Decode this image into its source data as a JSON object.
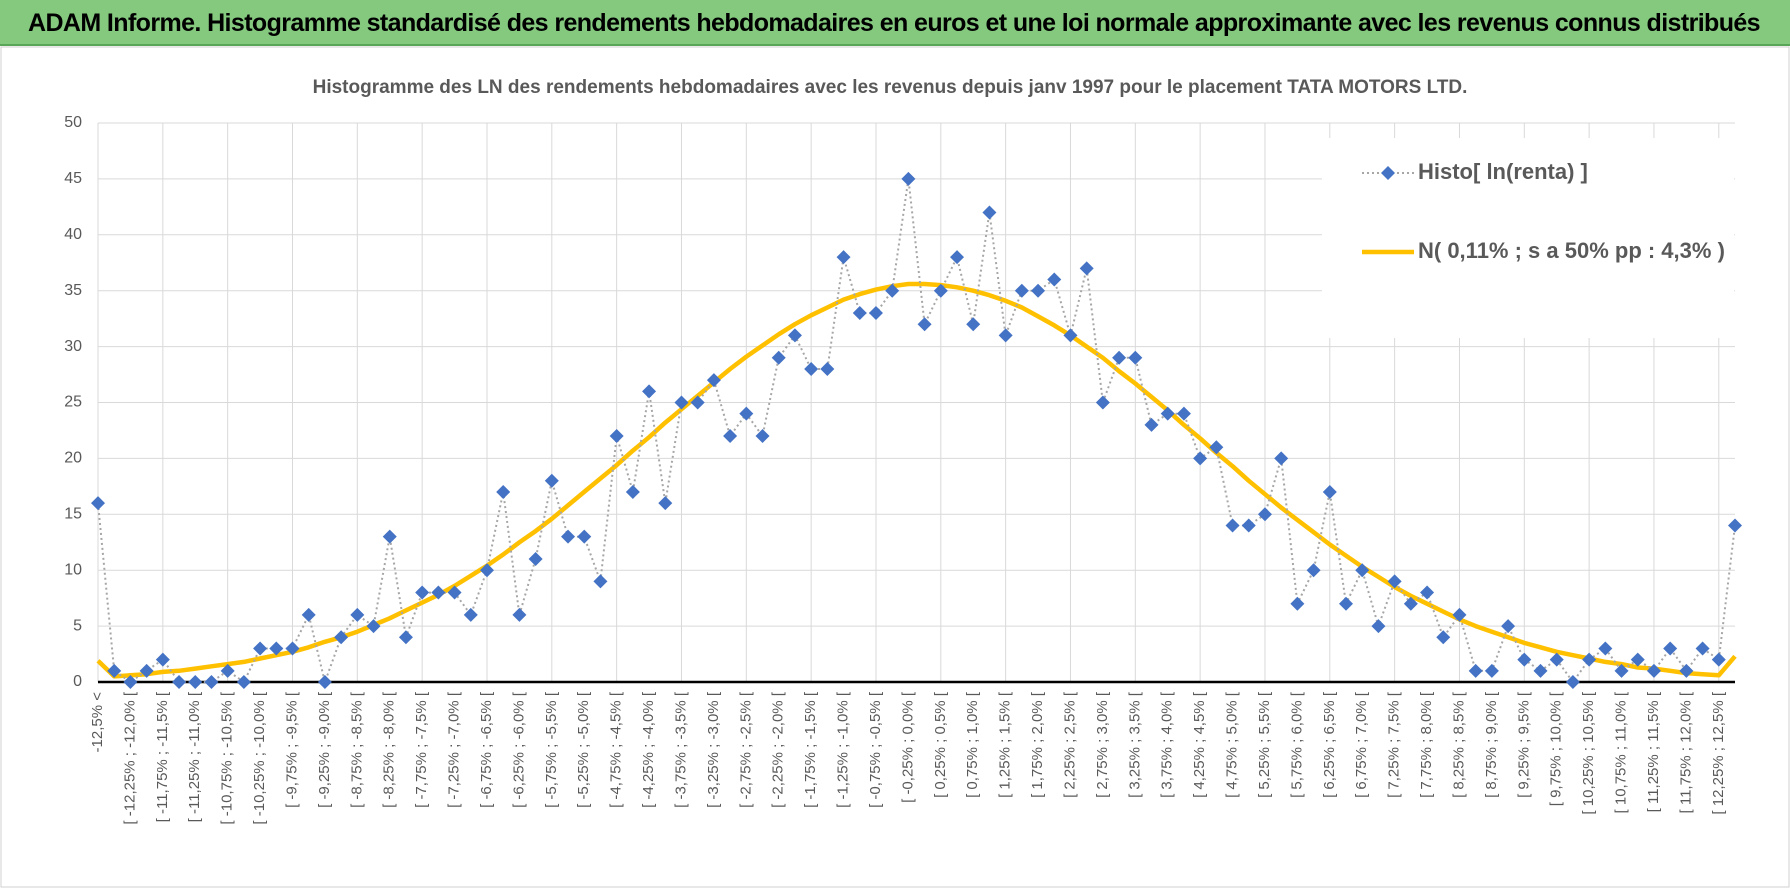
{
  "header": {
    "title": "ADAM Informe. Histogramme standardisé des rendements hebdomadaires en euros et une loi normale approximante avec les revenus connus distribués"
  },
  "chart_data": {
    "type": "line",
    "title": "Histogramme des LN des rendements hebdomadaires avec les revenus depuis janv 1997 pour le placement TATA MOTORS LTD.",
    "categories": [
      "-12,5% <",
      null,
      "[ -12,25% ; -12,0% [",
      null,
      "[ -11,75% ; -11,5% [",
      null,
      "[ -11,25% ; -11,0% [",
      null,
      "[ -10,75% ; -10,5% [",
      null,
      "[ -10,25% ; -10,0% [",
      null,
      "[ -9,75% ; -9,5% [",
      null,
      "[ -9,25% ; -9,0% [",
      null,
      "[ -8,75% ; -8,5% [",
      null,
      "[ -8,25% ; -8,0% [",
      null,
      "[ -7,75% ; -7,5% [",
      null,
      "[ -7,25% ; -7,0% [",
      null,
      "[ -6,75% ; -6,5% [",
      null,
      "[ -6,25% ; -6,0% [",
      null,
      "[ -5,75% ; -5,5% [",
      null,
      "[ -5,25% ; -5,0% [",
      null,
      "[ -4,75% ; -4,5% [",
      null,
      "[ -4,25% ; -4,0% [",
      null,
      "[ -3,75% ; -3,5% [",
      null,
      "[ -3,25% ; -3,0% [",
      null,
      "[ -2,75% ; -2,5% [",
      null,
      "[ -2,25% ; -2,0% [",
      null,
      "[ -1,75% ; -1,5% [",
      null,
      "[ -1,25% ; -1,0% [",
      null,
      "[ -0,75% ; -0,5% [",
      null,
      "[ -0,25% ; 0,0% [",
      null,
      "[ 0,25% ; 0,5% [",
      null,
      "[ 0,75% ; 1,0% [",
      null,
      "[ 1,25% ; 1,5% [",
      null,
      "[ 1,75% ; 2,0% [",
      null,
      "[ 2,25% ; 2,5% [",
      null,
      "[ 2,75% ; 3,0% [",
      null,
      "[ 3,25% ; 3,5% [",
      null,
      "[ 3,75% ; 4,0% [",
      null,
      "[ 4,25% ; 4,5% [",
      null,
      "[ 4,75% ; 5,0% [",
      null,
      "[ 5,25% ; 5,5% [",
      null,
      "[ 5,75% ; 6,0% [",
      null,
      "[ 6,25% ; 6,5% [",
      null,
      "[ 6,75% ; 7,0% [",
      null,
      "[ 7,25% ; 7,5% [",
      null,
      "[ 7,75% ; 8,0% [",
      null,
      "[ 8,25% ; 8,5% [",
      null,
      "[ 8,75% ; 9,0% [",
      null,
      "[ 9,25% ; 9,5% [",
      null,
      "[ 9,75% ; 10,0% [",
      null,
      "[ 10,25% ; 10,5% [",
      null,
      "[ 10,75% ; 11,0% [",
      null,
      "[ 11,25% ; 11,5% [",
      null,
      "[ 11,75% ; 12,0% [",
      null,
      "[ 12,25% ; 12,5% [",
      null
    ],
    "series": [
      {
        "name": "Histo[ ln(renta) ]",
        "color": "#4472c4",
        "line_color": "#a6a6a6",
        "marker": "diamond",
        "values": [
          16,
          1,
          0,
          1,
          2,
          0,
          0,
          0,
          1,
          0,
          3,
          3,
          3,
          6,
          0,
          4,
          6,
          5,
          13,
          4,
          8,
          8,
          8,
          6,
          10,
          17,
          6,
          11,
          18,
          13,
          13,
          9,
          22,
          17,
          26,
          16,
          25,
          25,
          27,
          22,
          24,
          22,
          29,
          31,
          28,
          28,
          38,
          33,
          33,
          35,
          45,
          32,
          35,
          38,
          32,
          42,
          31,
          35,
          35,
          36,
          31,
          37,
          25,
          29,
          29,
          23,
          24,
          24,
          20,
          21,
          14,
          14,
          15,
          20,
          7,
          10,
          17,
          7,
          10,
          5,
          9,
          7,
          8,
          4,
          6,
          1,
          1,
          5,
          2,
          1,
          2,
          0,
          2,
          3,
          1,
          2,
          1,
          3,
          1,
          3,
          2,
          14
        ]
      },
      {
        "name": "N( 0,11% ; s a 50% pp : 4,3% )",
        "color": "#ffc000",
        "marker": "none",
        "values": [
          1.9,
          0.5,
          0.6,
          0.7,
          0.9,
          1.0,
          1.2,
          1.4,
          1.6,
          1.8,
          2.1,
          2.4,
          2.7,
          3.1,
          3.6,
          4.0,
          4.5,
          5.1,
          5.7,
          6.4,
          7.1,
          7.8,
          8.6,
          9.5,
          10.4,
          11.4,
          12.5,
          13.5,
          14.6,
          15.8,
          17.0,
          18.2,
          19.4,
          20.7,
          21.9,
          23.2,
          24.4,
          25.6,
          26.8,
          28.0,
          29.1,
          30.1,
          31.1,
          32.0,
          32.8,
          33.5,
          34.2,
          34.7,
          35.1,
          35.4,
          35.6,
          35.6,
          35.5,
          35.3,
          35.0,
          34.6,
          34.1,
          33.5,
          32.7,
          31.9,
          31.0,
          30.0,
          29.0,
          27.8,
          26.7,
          25.5,
          24.3,
          23.0,
          21.8,
          20.5,
          19.3,
          18.0,
          16.8,
          15.6,
          14.5,
          13.4,
          12.3,
          11.3,
          10.3,
          9.4,
          8.5,
          7.7,
          7.0,
          6.3,
          5.6,
          5.0,
          4.5,
          4.0,
          3.5,
          3.1,
          2.7,
          2.4,
          2.1,
          1.8,
          1.6,
          1.3,
          1.2,
          1.0,
          0.8,
          0.7,
          0.6,
          2.3
        ]
      }
    ],
    "ylim": [
      0,
      50
    ],
    "yticks": [
      0,
      5,
      10,
      15,
      20,
      25,
      30,
      35,
      40,
      45,
      50
    ],
    "grid": true,
    "xgrid_every": 4,
    "legend": "top-right"
  }
}
